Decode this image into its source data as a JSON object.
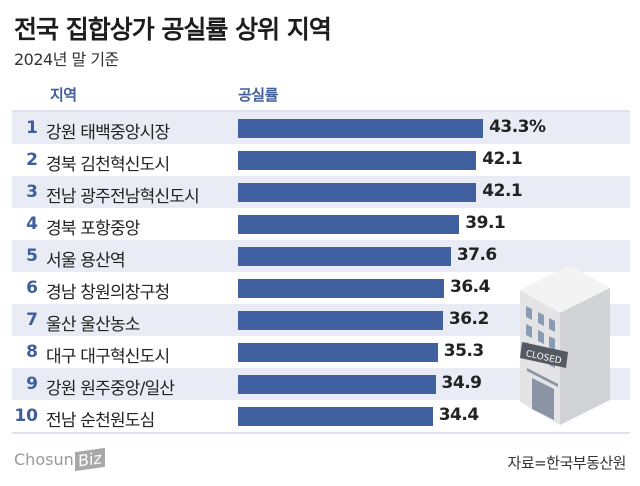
{
  "header": {
    "title": "전국 집합상가 공실률 상위 지역",
    "subtitle": "2024년 말 기준"
  },
  "columns": {
    "region": "지역",
    "rate": "공실률"
  },
  "rows": [
    {
      "rank": "1",
      "name": "강원 태백중앙시장",
      "value": 43.3,
      "label": "43.3%"
    },
    {
      "rank": "2",
      "name": "경북 김천혁신도시",
      "value": 42.1,
      "label": "42.1"
    },
    {
      "rank": "3",
      "name": "전남 광주전남혁신도시",
      "value": 42.1,
      "label": "42.1"
    },
    {
      "rank": "4",
      "name": "경북 포항중앙",
      "value": 39.1,
      "label": "39.1"
    },
    {
      "rank": "5",
      "name": "서울 용산역",
      "value": 37.6,
      "label": "37.6"
    },
    {
      "rank": "6",
      "name": "경남 창원의창구청",
      "value": 36.4,
      "label": "36.4"
    },
    {
      "rank": "7",
      "name": "울산 울산농소",
      "value": 36.2,
      "label": "36.2"
    },
    {
      "rank": "8",
      "name": "대구 대구혁신도시",
      "value": 35.3,
      "label": "35.3"
    },
    {
      "rank": "9",
      "name": "강원 원주중앙/일산",
      "value": 34.9,
      "label": "34.9"
    },
    {
      "rank": "10",
      "name": "전남 순천원도심",
      "value": 34.4,
      "label": "34.4"
    }
  ],
  "illustration": {
    "sign_text": "CLOSED"
  },
  "footer": {
    "logo_main": "Chosun",
    "logo_biz": "Biz",
    "source": "자료=한국부동산원"
  },
  "colors": {
    "bar": "#41609f",
    "accent": "#3f5e9a",
    "row_alt": "#e9ecf4"
  },
  "chart_data": {
    "type": "bar",
    "orientation": "horizontal",
    "title": "전국 집합상가 공실률 상위 지역",
    "subtitle": "2024년 말 기준",
    "categories": [
      "강원 태백중앙시장",
      "경북 김천혁신도시",
      "전남 광주전남혁신도시",
      "경북 포항중앙",
      "서울 용산역",
      "경남 창원의창구청",
      "울산 울산농소",
      "대구 대구혁신도시",
      "강원 원주중앙/일산",
      "전남 순천원도심"
    ],
    "values": [
      43.3,
      42.1,
      42.1,
      39.1,
      37.6,
      36.4,
      36.2,
      35.3,
      34.9,
      34.4
    ],
    "xlabel": "공실률",
    "ylabel": "지역",
    "unit": "%",
    "source": "자료=한국부동산원",
    "grid": false,
    "legend": null
  }
}
